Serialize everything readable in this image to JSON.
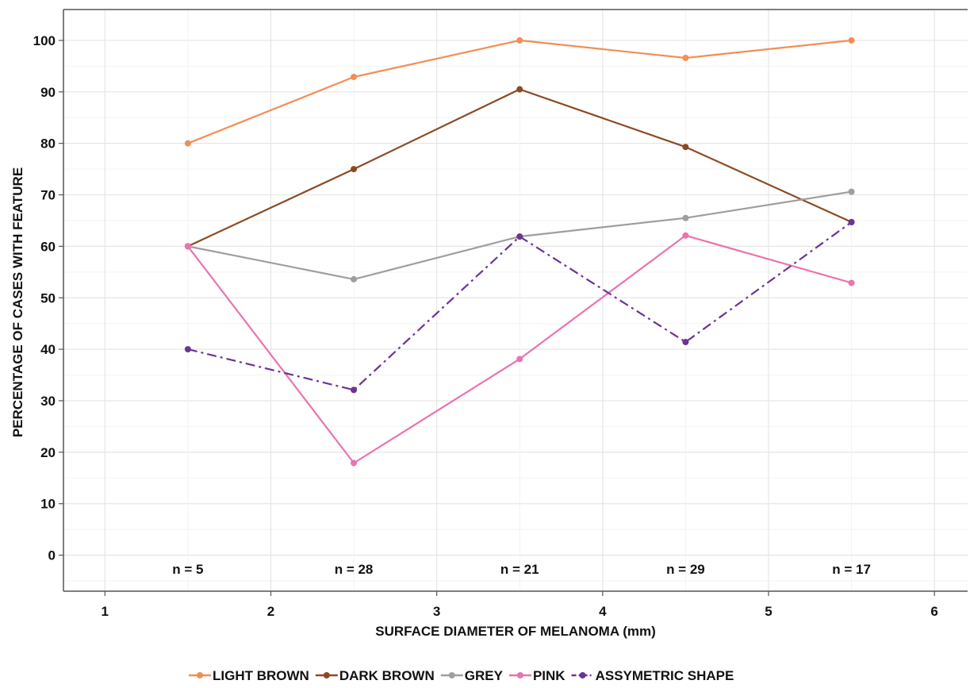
{
  "chart_data": {
    "type": "line",
    "title": "",
    "xlabel": "SURFACE DIAMETER OF MELANOMA (mm)",
    "ylabel": "PERCENTAGE OF CASES WITH FEATURE",
    "xlim": [
      0.75,
      6.2
    ],
    "ylim": [
      -7,
      106
    ],
    "x_ticks": [
      1,
      2,
      3,
      4,
      5,
      6
    ],
    "y_ticks": [
      0,
      10,
      20,
      30,
      40,
      50,
      60,
      70,
      80,
      90,
      100
    ],
    "grid": true,
    "legend_position": "bottom",
    "x": [
      1.5,
      2.5,
      3.5,
      4.5,
      5.5
    ],
    "sample_sizes": [
      "n = 5",
      "n = 28",
      "n = 21",
      "n = 29",
      "n = 17"
    ],
    "series": [
      {
        "name": "LIGHT BROWN",
        "color": "#f28e55",
        "dash": "solid",
        "values": [
          80,
          92.9,
          100,
          96.6,
          100
        ]
      },
      {
        "name": "DARK BROWN",
        "color": "#8b4a24",
        "dash": "solid",
        "values": [
          60,
          75,
          90.5,
          79.3,
          64.7
        ]
      },
      {
        "name": "GREY",
        "color": "#9e9e9e",
        "dash": "solid",
        "values": [
          60,
          53.6,
          61.9,
          65.5,
          70.6
        ]
      },
      {
        "name": "PINK",
        "color": "#ea73b0",
        "dash": "solid",
        "values": [
          60,
          17.9,
          38.1,
          62.1,
          52.9
        ]
      },
      {
        "name": "ASSYMETRIC SHAPE",
        "color": "#6a3494",
        "dash": "dashdot",
        "values": [
          40,
          32.1,
          61.9,
          41.4,
          64.7
        ]
      }
    ]
  }
}
